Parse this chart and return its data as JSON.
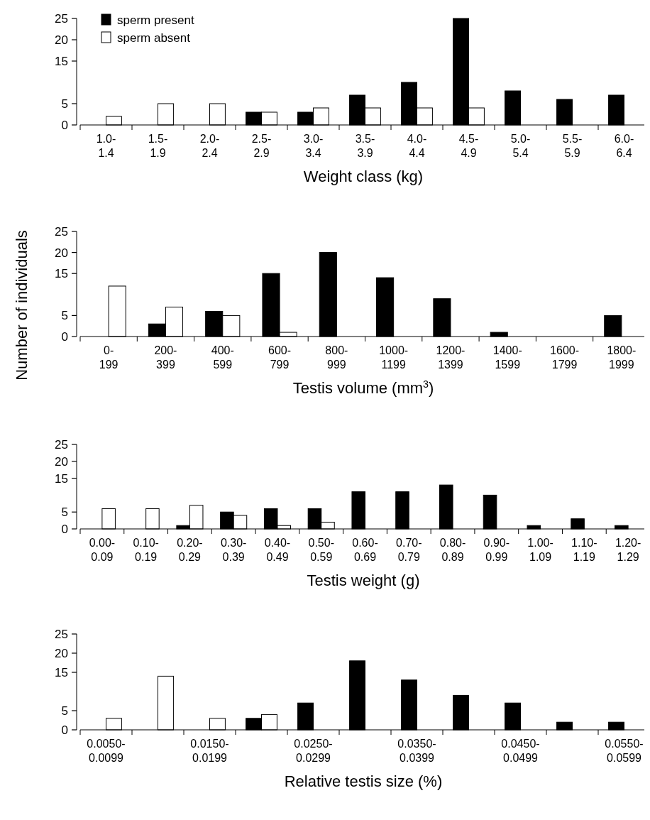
{
  "chart_data": [
    {
      "type": "bar",
      "categories": [
        "1.0-\n1.4",
        "1.5-\n1.9",
        "2.0-\n2.4",
        "2.5-\n2.9",
        "3.0-\n3.4",
        "3.5-\n3.9",
        "4.0-\n4.4",
        "4.5-\n4.9",
        "5.0-\n5.4",
        "5.5-\n5.9",
        "6.0-\n6.4"
      ],
      "xlabel": "Weight class (kg)",
      "ylim": [
        0,
        25
      ],
      "yticks": [
        0,
        5,
        15,
        20,
        25
      ],
      "legend": "top left",
      "grid": false,
      "series": [
        {
          "name": "sperm present",
          "color": "#000000",
          "values": [
            0,
            0,
            0,
            3,
            3,
            7,
            10,
            25,
            8,
            6,
            7
          ]
        },
        {
          "name": "sperm absent",
          "color": "#ffffff",
          "values": [
            2,
            5,
            5,
            3,
            4,
            4,
            4,
            4,
            0,
            0,
            0
          ]
        }
      ]
    },
    {
      "type": "bar",
      "categories": [
        "0-\n199",
        "200-\n399",
        "400-\n599",
        "600-\n799",
        "800-\n999",
        "1000-\n1199",
        "1200-\n1399",
        "1400-\n1599",
        "1600-\n1799",
        "1800-\n1999"
      ],
      "xlabel": "Testis volume (mm$^{3}$)",
      "ylabel": "Number of individuals",
      "ylim": [
        0,
        25
      ],
      "yticks": [
        0,
        5,
        15,
        20,
        25
      ],
      "grid": false,
      "series": [
        {
          "color": "#000000",
          "values": [
            0,
            3,
            6,
            15,
            20,
            14,
            9,
            1,
            0,
            5
          ]
        },
        {
          "color": "#ffffff",
          "values": [
            12,
            7,
            5,
            1,
            0,
            0,
            0,
            0,
            0,
            0
          ]
        }
      ]
    },
    {
      "type": "bar",
      "categories": [
        "0.00-\n0.09",
        "0.10-\n0.19",
        "0.20-\n0.29",
        "0.30-\n0.39",
        "0.40-\n0.49",
        "0.50-\n0.59",
        "0.60-\n0.69",
        "0.70-\n0.79",
        "0.80-\n0.89",
        "0.90-\n0.99",
        "1.00-\n1.09",
        "1.10-\n1.19",
        "1.20-\n1.29"
      ],
      "xlabel": "Testis weight (g)",
      "ylim": [
        0,
        25
      ],
      "yticks": [
        0,
        5,
        15,
        20,
        25
      ],
      "grid": false,
      "series": [
        {
          "color": "#000000",
          "values": [
            0,
            0,
            1,
            5,
            6,
            6,
            11,
            11,
            13,
            10,
            1,
            3,
            1
          ]
        },
        {
          "color": "#ffffff",
          "values": [
            6,
            6,
            7,
            4,
            1,
            2,
            0,
            0,
            0,
            0,
            0,
            0,
            0
          ]
        }
      ]
    },
    {
      "type": "bar",
      "categories": [
        "0.0050-\n0.0099",
        null,
        "0.0150-\n0.0199",
        null,
        "0.0250-\n0.0299",
        null,
        "0.0350-\n0.0399",
        null,
        "0.0450-\n0.0499",
        null,
        "0.0550-\n0.0599"
      ],
      "xlabel": "Relative testis size (%)",
      "ylim": [
        0,
        25
      ],
      "yticks": [
        0,
        5,
        15,
        20,
        25
      ],
      "grid": false,
      "series": [
        {
          "color": "#000000",
          "values": [
            0,
            0,
            0,
            3,
            7,
            18,
            13,
            9,
            7,
            2,
            2
          ]
        },
        {
          "color": "#ffffff",
          "values": [
            3,
            14,
            3,
            4,
            0,
            0,
            0,
            0,
            0,
            0,
            0
          ]
        }
      ]
    }
  ]
}
